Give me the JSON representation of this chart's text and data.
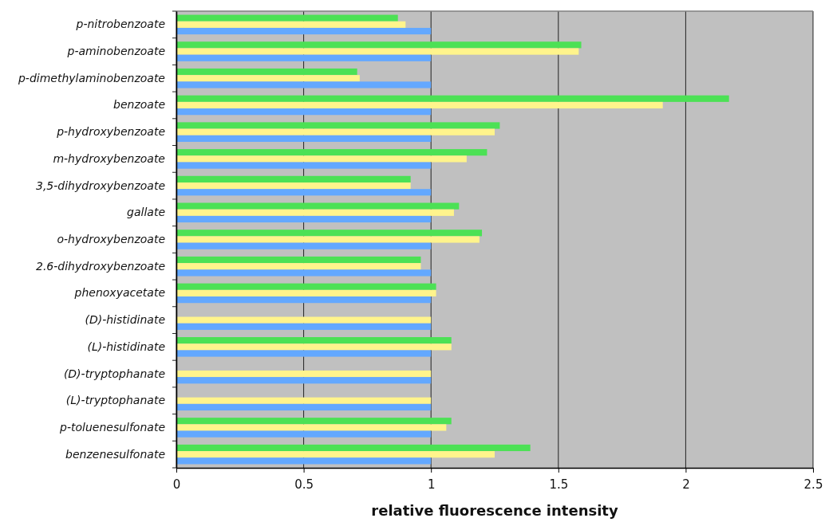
{
  "chart_data": {
    "type": "bar",
    "orientation": "horizontal",
    "xlabel": "relative fluorescence intensity",
    "categories": [
      "p-nitrobenzoate",
      "p-aminobenzoate",
      "p-dimethylaminobenzoate",
      "benzoate",
      "p-hydroxybenzoate",
      "m-hydroxybenzoate",
      "3,5-dihydroxybenzoate",
      "gallate",
      "o-hydroxybenzoate",
      "2.6-dihydroxybenzoate",
      "phenoxyacetate",
      "(D)-histidinate",
      "(L)-histidinate",
      "(D)-tryptophanate",
      "(L)-tryptophanate",
      "p-toluenesulfonate",
      "benzenesulfonate"
    ],
    "series": [
      {
        "color": "#4ce155",
        "values": [
          0.87,
          1.59,
          0.71,
          2.17,
          1.27,
          1.22,
          0.92,
          1.11,
          1.2,
          0.96,
          1.02,
          null,
          1.08,
          null,
          null,
          1.08,
          1.39
        ]
      },
      {
        "color": "#fff48c",
        "values": [
          0.9,
          1.58,
          0.72,
          1.91,
          1.25,
          1.14,
          0.92,
          1.09,
          1.19,
          0.96,
          1.02,
          1,
          1.08,
          1,
          1,
          1.06,
          1.25
        ]
      },
      {
        "color": "#63a8ff",
        "values": [
          1,
          1,
          1,
          1,
          1,
          1,
          1,
          1,
          1,
          1,
          1,
          1,
          1,
          1,
          1,
          1,
          1
        ]
      }
    ],
    "xlim": [
      0,
      2.5
    ],
    "xticks": [
      0,
      0.5,
      1,
      1.5,
      2,
      2.5
    ],
    "grid": "x"
  }
}
